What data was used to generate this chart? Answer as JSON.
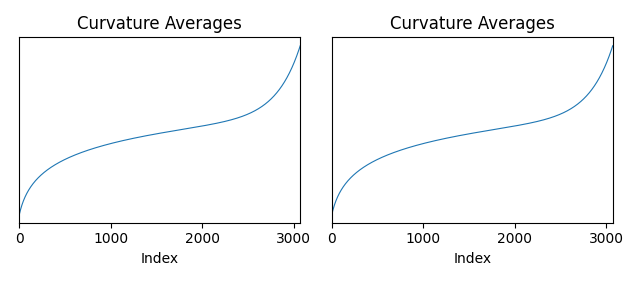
{
  "title": "Curvature Averages",
  "xlabel": "Index",
  "line_color": "#1f77b4",
  "n_points": 3072,
  "figure_size": [
    6.4,
    2.81
  ],
  "dpi": 100,
  "left_ylim_bottom": null,
  "right_ylim_bottom": null
}
